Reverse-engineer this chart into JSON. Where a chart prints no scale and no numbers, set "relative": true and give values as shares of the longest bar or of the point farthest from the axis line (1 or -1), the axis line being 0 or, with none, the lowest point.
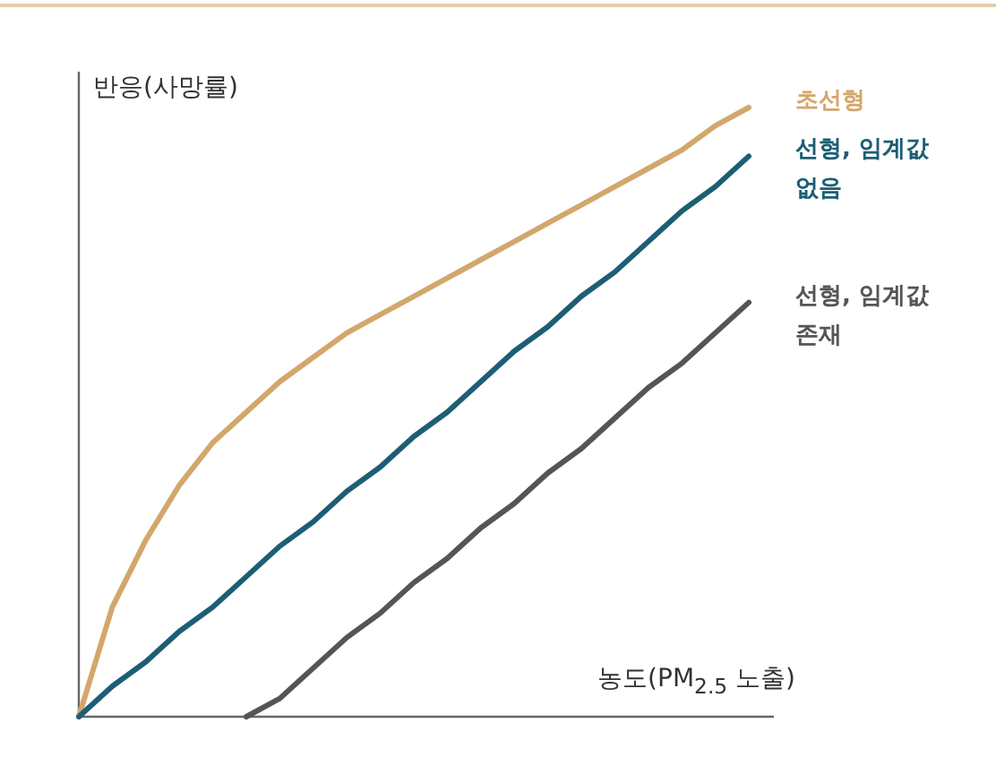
{
  "chart_data": {
    "type": "line",
    "relative": true,
    "xlabel": "농도(PM$_{2.5}$ 노출)",
    "ylabel": "반응(사망률)",
    "categories": [
      null,
      null,
      null,
      null,
      null,
      null,
      null,
      null,
      null,
      null,
      null,
      null,
      null,
      null,
      null,
      null,
      null,
      null,
      null,
      null,
      null
    ],
    "series": [
      {
        "name": "초선형",
        "color": "#d3a76c",
        "values": [
          0,
          0.18,
          0.29,
          0.38,
          0.45,
          0.5,
          0.55,
          0.59,
          0.63,
          0.66,
          0.69,
          0.72,
          0.75,
          0.78,
          0.81,
          0.84,
          0.87,
          0.9,
          0.93,
          0.97,
          1
        ]
      },
      {
        "name": "선형, 임계값 없음",
        "color": "#1d5e75",
        "values": [
          0,
          0.05,
          0.09,
          0.14,
          0.18,
          0.23,
          0.28,
          0.32,
          0.37,
          0.41,
          0.46,
          0.5,
          0.55,
          0.6,
          0.64,
          0.69,
          0.73,
          0.78,
          0.83,
          0.87,
          0.92
        ]
      },
      {
        "name": "선형, 임계값 존재",
        "color": "#555555",
        "values": [
          null,
          null,
          null,
          null,
          null,
          0,
          0.03,
          0.08,
          0.13,
          0.17,
          0.22,
          0.26,
          0.31,
          0.35,
          0.4,
          0.44,
          0.49,
          0.54,
          0.58,
          0.63,
          0.68
        ]
      }
    ]
  }
}
